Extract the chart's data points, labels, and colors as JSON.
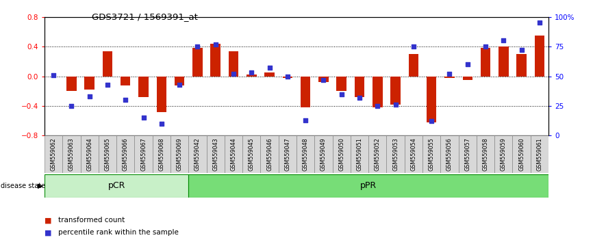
{
  "title": "GDS3721 / 1569391_at",
  "samples": [
    "GSM559062",
    "GSM559063",
    "GSM559064",
    "GSM559065",
    "GSM559066",
    "GSM559067",
    "GSM559068",
    "GSM559069",
    "GSM559042",
    "GSM559043",
    "GSM559044",
    "GSM559045",
    "GSM559046",
    "GSM559047",
    "GSM559048",
    "GSM559049",
    "GSM559050",
    "GSM559051",
    "GSM559052",
    "GSM559053",
    "GSM559054",
    "GSM559055",
    "GSM559056",
    "GSM559057",
    "GSM559058",
    "GSM559059",
    "GSM559060",
    "GSM559061"
  ],
  "transformed_count": [
    0.0,
    -0.2,
    -0.18,
    0.34,
    -0.12,
    -0.28,
    -0.48,
    -0.12,
    0.38,
    0.44,
    0.34,
    0.02,
    0.05,
    -0.02,
    -0.42,
    -0.08,
    -0.2,
    -0.28,
    -0.42,
    -0.38,
    0.3,
    -0.62,
    -0.02,
    -0.05,
    0.38,
    0.4,
    0.3,
    0.55
  ],
  "percentile_rank": [
    51,
    25,
    33,
    43,
    30,
    15,
    10,
    43,
    75,
    77,
    52,
    53,
    57,
    50,
    13,
    47,
    35,
    32,
    25,
    26,
    75,
    12,
    52,
    60,
    75,
    80,
    72,
    95
  ],
  "pCR_count": 8,
  "pPR_count": 20,
  "ylim_left": [
    -0.8,
    0.8
  ],
  "ylim_right": [
    0,
    100
  ],
  "right_ticks": [
    0,
    25,
    50,
    75,
    100
  ],
  "right_tick_labels": [
    "0",
    "25",
    "50",
    "75",
    "100%"
  ],
  "left_ticks": [
    -0.8,
    -0.4,
    0.0,
    0.4,
    0.8
  ],
  "hlines": [
    -0.4,
    0.0,
    0.4
  ],
  "bar_color": "#cc2200",
  "dot_color": "#3333cc",
  "pCR_color": "#c8f0c8",
  "pPR_color": "#77dd77",
  "group_edge": "#008800",
  "label_transformed": "transformed count",
  "label_percentile": "percentile rank within the sample",
  "disease_state_label": "disease state",
  "pCR_label": "pCR",
  "pPR_label": "pPR",
  "bar_width": 0.55,
  "tick_box_color": "#d8d8d8",
  "tick_box_edge": "#888888"
}
